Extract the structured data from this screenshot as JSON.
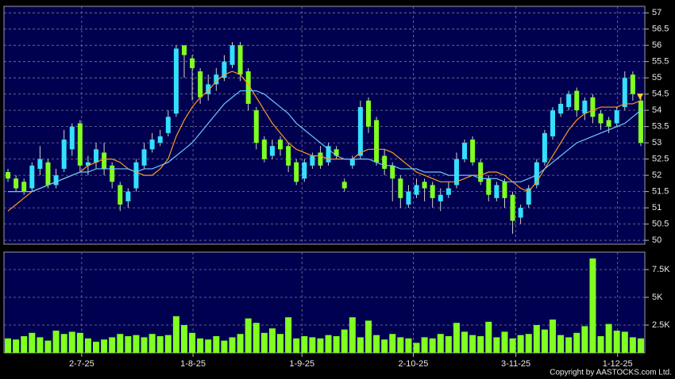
{
  "chart_data": [
    {
      "type": "candlestick",
      "xlim": [
        0,
        80
      ],
      "xticks": [
        {
          "value": 9.7,
          "label": "2-7-25"
        },
        {
          "value": 23.6,
          "label": "1-8-25"
        },
        {
          "value": 37.2,
          "label": "1-9-25"
        },
        {
          "value": 51.1,
          "label": "2-10-25"
        },
        {
          "value": 63.9,
          "label": "3-11-25"
        },
        {
          "value": 76.6,
          "label": "1-12-25"
        }
      ],
      "ylim": [
        49.88,
        57.2
      ],
      "yticks": [
        50,
        50.5,
        51,
        51.5,
        52,
        52.5,
        53,
        53.5,
        54,
        54.5,
        55,
        55.5,
        56,
        56.5,
        57
      ],
      "grid": true,
      "up_color": "#33e0ff",
      "down_color": "#80ff20",
      "open": [
        52.1,
        51.9,
        51.8,
        51.6,
        52.2,
        52.4,
        51.7,
        52.2,
        52.8,
        53.6,
        52.3,
        52.4,
        52.7,
        52.3,
        51.7,
        51.2,
        51.6,
        52.3,
        52.8,
        53.0,
        53.3,
        53.9,
        56.0,
        55.6,
        55.2,
        54.5,
        54.8,
        55.0,
        55.4,
        56.0,
        55.2,
        54.0,
        53.1,
        52.6,
        53.1,
        52.9,
        52.4,
        51.9,
        52.3,
        52.7,
        52.4,
        52.8,
        51.8,
        52.3,
        52.6,
        54.3,
        53.7,
        52.6,
        52.3,
        51.9,
        51.1,
        51.4,
        51.8,
        51.7,
        51.2,
        51.4,
        51.7,
        52.5,
        53.1,
        52.4,
        51.9,
        51.3,
        51.8,
        51.4,
        50.7,
        51.1,
        51.7,
        52.4,
        53.2,
        53.9,
        54.1,
        54.6,
        53.9,
        54.4,
        53.9,
        53.7,
        53.6,
        54.1,
        55.1,
        54.3
      ],
      "high": [
        52.2,
        52.0,
        51.9,
        52.4,
        52.9,
        52.5,
        52.2,
        53.4,
        53.6,
        53.7,
        52.6,
        53.0,
        53.0,
        52.4,
        51.8,
        51.6,
        52.5,
        53.0,
        53.3,
        53.4,
        54.0,
        56.0,
        56.0,
        55.7,
        55.3,
        55.1,
        55.3,
        55.7,
        56.1,
        56.1,
        55.3,
        54.1,
        53.2,
        53.1,
        53.2,
        53.0,
        52.5,
        52.5,
        52.7,
        52.9,
        53.0,
        52.9,
        51.9,
        52.6,
        54.3,
        54.4,
        53.8,
        52.8,
        52.4,
        52.0,
        51.7,
        51.9,
        51.9,
        51.8,
        51.6,
        51.8,
        52.7,
        53.1,
        53.2,
        52.5,
        52.0,
        51.8,
        51.9,
        51.5,
        51.1,
        51.7,
        52.5,
        53.4,
        54.1,
        54.4,
        54.6,
        54.7,
        54.4,
        54.5,
        54.0,
        53.8,
        54.1,
        55.2,
        55.2,
        54.4
      ],
      "low": [
        51.8,
        51.5,
        51.4,
        51.5,
        52.0,
        51.6,
        51.6,
        52.1,
        52.6,
        52.1,
        52.0,
        52.2,
        52.0,
        51.6,
        50.9,
        51.0,
        51.5,
        52.2,
        52.7,
        52.9,
        53.2,
        53.8,
        55.0,
        54.3,
        54.2,
        54.3,
        54.6,
        54.9,
        55.3,
        54.9,
        54.0,
        52.8,
        52.4,
        52.5,
        52.6,
        52.1,
        51.7,
        51.8,
        52.2,
        52.2,
        52.3,
        52.5,
        51.5,
        52.2,
        52.5,
        53.3,
        52.3,
        52.0,
        51.2,
        51.0,
        51.0,
        51.3,
        51.2,
        51.0,
        50.9,
        51.3,
        51.6,
        52.4,
        52.3,
        51.7,
        51.2,
        51.2,
        51.0,
        50.2,
        50.5,
        51.0,
        51.6,
        52.3,
        53.1,
        53.8,
        54.0,
        53.8,
        53.7,
        53.6,
        53.4,
        53.3,
        53.5,
        54.0,
        54.3,
        52.9
      ],
      "close": [
        51.9,
        51.6,
        51.5,
        52.3,
        52.5,
        51.7,
        52.0,
        53.1,
        53.5,
        52.3,
        52.4,
        52.8,
        52.2,
        51.8,
        51.1,
        51.5,
        52.4,
        52.8,
        53.1,
        53.2,
        53.8,
        55.9,
        55.7,
        55.3,
        54.4,
        54.8,
        55.1,
        55.5,
        56.0,
        55.1,
        54.2,
        53.0,
        52.5,
        52.9,
        52.8,
        52.3,
        51.8,
        52.4,
        52.6,
        52.3,
        52.9,
        52.6,
        51.6,
        52.5,
        54.1,
        53.5,
        52.4,
        52.2,
        51.9,
        51.3,
        51.5,
        51.7,
        51.6,
        51.3,
        51.4,
        51.6,
        52.5,
        53.0,
        52.4,
        51.8,
        51.4,
        51.7,
        51.3,
        50.6,
        51.0,
        51.6,
        52.4,
        53.3,
        54.0,
        54.2,
        54.5,
        54.0,
        54.3,
        53.8,
        53.6,
        53.5,
        54.0,
        55.0,
        54.5,
        53.0
      ],
      "series": [
        {
          "color": "#ff9a1f",
          "values": [
            50.9,
            51.1,
            51.3,
            51.5,
            51.6,
            51.7,
            51.8,
            51.9,
            52.0,
            52.1,
            52.3,
            52.4,
            52.5,
            52.5,
            52.4,
            52.2,
            52.1,
            52.0,
            52.0,
            52.2,
            52.5,
            53.2,
            53.7,
            54.1,
            54.4,
            54.6,
            54.9,
            55.1,
            55.2,
            55.1,
            54.8,
            54.4,
            54.0,
            53.6,
            53.3,
            53.0,
            52.8,
            52.7,
            52.6,
            52.6,
            52.5,
            52.5,
            52.5,
            52.5,
            52.7,
            52.8,
            52.8,
            52.8,
            52.7,
            52.5,
            52.3,
            52.1,
            52.0,
            51.9,
            51.8,
            51.8,
            51.8,
            51.9,
            52.0,
            52.0,
            52.1,
            52.1,
            52.0,
            51.8,
            51.6,
            51.5,
            51.8,
            52.2,
            52.6,
            53.0,
            53.4,
            53.7,
            53.9,
            54.0,
            54.1,
            54.1,
            54.1,
            54.2,
            54.2,
            54.3
          ]
        },
        {
          "color": "#6ec8ff",
          "values": [
            51.5,
            51.5,
            51.5,
            51.5,
            51.6,
            51.7,
            51.8,
            51.9,
            52.0,
            52.1,
            52.1,
            52.2,
            52.2,
            52.2,
            52.2,
            52.2,
            52.1,
            52.2,
            52.2,
            52.3,
            52.4,
            52.6,
            52.8,
            53.0,
            53.3,
            53.6,
            53.9,
            54.2,
            54.4,
            54.6,
            54.6,
            54.6,
            54.5,
            54.3,
            54.1,
            53.9,
            53.6,
            53.4,
            53.2,
            53.0,
            52.8,
            52.6,
            52.5,
            52.5,
            52.5,
            52.5,
            52.4,
            52.3,
            52.3,
            52.2,
            52.2,
            52.2,
            52.1,
            52.1,
            52.1,
            52.0,
            52.0,
            52.0,
            52.0,
            51.9,
            51.9,
            51.9,
            51.8,
            51.8,
            51.8,
            51.9,
            52.0,
            52.2,
            52.4,
            52.6,
            52.8,
            53.0,
            53.1,
            53.2,
            53.3,
            53.4,
            53.5,
            53.6,
            53.8,
            54.0
          ]
        }
      ]
    },
    {
      "type": "bar",
      "color": "#80ff20",
      "ylim": [
        0,
        9070
      ],
      "yticks": [
        {
          "value": 2500,
          "label": "2.5K"
        },
        {
          "value": 5000,
          "label": "5K"
        },
        {
          "value": 7500,
          "label": "7.5K"
        }
      ],
      "grid": true,
      "values": [
        1300,
        1200,
        1500,
        1800,
        1400,
        1100,
        2000,
        1700,
        1900,
        1800,
        1300,
        1000,
        1200,
        1400,
        1700,
        1500,
        1600,
        1400,
        1700,
        1500,
        1600,
        3300,
        2500,
        1800,
        1300,
        1200,
        1500,
        1100,
        1400,
        1700,
        3100,
        2700,
        1800,
        2200,
        1700,
        3200,
        1300,
        1500,
        1400,
        1300,
        1600,
        1500,
        2100,
        3200,
        1400,
        2900,
        1600,
        1200,
        1700,
        1400,
        1300,
        900,
        1400,
        1300,
        1700,
        1500,
        2700,
        1900,
        1600,
        1500,
        2800,
        1400,
        1900,
        1300,
        1600,
        1700,
        2500,
        2100,
        3000,
        1600,
        1400,
        1800,
        2400,
        8500,
        1500,
        2600,
        2000,
        1900,
        1400,
        1300
      ]
    }
  ],
  "copyright": "Copyright by AASTOCKS.com Ltd."
}
